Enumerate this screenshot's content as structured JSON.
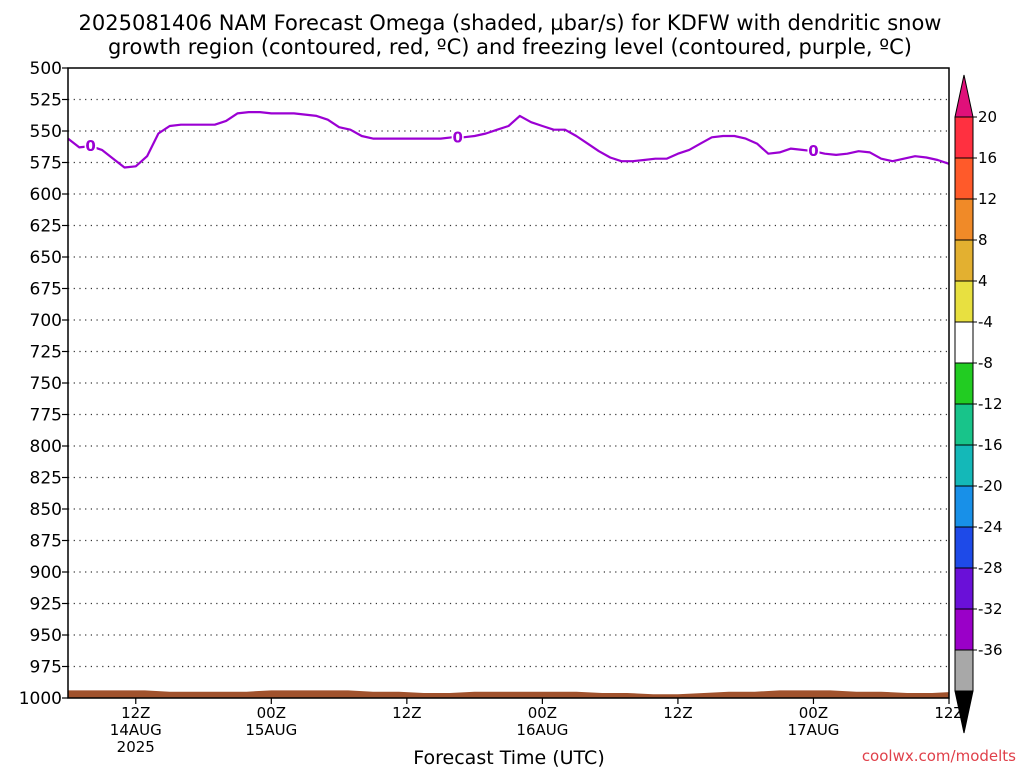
{
  "chart_data": {
    "type": "line",
    "title_line1": "2025081406 NAM Forecast Omega (shaded, µbar/s) for KDFW with dendritic snow",
    "title_line2": "growth region (contoured, red, ºC) and freezing level (contoured, purple, ºC)",
    "xlabel": "Forecast Time (UTC)",
    "credit": "coolwx.com/modelts",
    "y_axis": {
      "label": "",
      "inverted": true,
      "ylim": [
        500,
        1000
      ],
      "ticks": [
        500,
        525,
        550,
        575,
        600,
        625,
        650,
        675,
        700,
        725,
        750,
        775,
        800,
        825,
        850,
        875,
        900,
        925,
        950,
        975,
        1000
      ]
    },
    "x_axis": {
      "xlim": [
        6,
        84
      ],
      "unit": "forecast hour",
      "ticks": [
        {
          "hour": 12,
          "lines": [
            "12Z",
            "14AUG",
            "2025"
          ]
        },
        {
          "hour": 24,
          "lines": [
            "00Z",
            "15AUG"
          ]
        },
        {
          "hour": 36,
          "lines": [
            "12Z"
          ]
        },
        {
          "hour": 48,
          "lines": [
            "00Z",
            "16AUG"
          ]
        },
        {
          "hour": 60,
          "lines": [
            "12Z"
          ]
        },
        {
          "hour": 72,
          "lines": [
            "00Z",
            "17AUG"
          ]
        },
        {
          "hour": 84,
          "lines": [
            "12Z"
          ]
        }
      ],
      "grid": "dotted horizontal"
    },
    "series": [
      {
        "name": "",
        "role": "freezing level",
        "color": "#9b00d3",
        "contour_label": "0",
        "label_hours": [
          8.0,
          40.5,
          72.0
        ],
        "x": [
          6.0,
          7.0,
          8.0,
          9.0,
          10.0,
          11.0,
          12.0,
          13.0,
          14.0,
          15.0,
          16.0,
          17.0,
          18.0,
          19.0,
          20.0,
          21.0,
          22.0,
          23.0,
          24.0,
          25.0,
          26.0,
          27.0,
          28.0,
          29.0,
          30.0,
          31.0,
          32.0,
          33.0,
          34.0,
          35.0,
          36.0,
          37.0,
          38.0,
          39.0,
          40.0,
          41.0,
          42.0,
          43.0,
          44.0,
          45.0,
          46.0,
          47.0,
          48.0,
          49.0,
          50.0,
          51.0,
          52.0,
          53.0,
          54.0,
          55.0,
          56.0,
          57.0,
          58.0,
          59.0,
          60.0,
          61.0,
          62.0,
          63.0,
          64.0,
          65.0,
          66.0,
          67.0,
          68.0,
          69.0,
          70.0,
          71.0,
          72.0,
          73.0,
          74.0,
          75.0,
          76.0,
          77.0,
          78.0,
          79.0,
          80.0,
          81.0,
          82.0,
          83.0,
          84.0,
          85.0,
          86.0
        ],
        "values": [
          556,
          563,
          562,
          565,
          572,
          579,
          578,
          570,
          552,
          546,
          545,
          545,
          545,
          545,
          542,
          536,
          535,
          535,
          536,
          536,
          536,
          537,
          538,
          541,
          547,
          549,
          554,
          556,
          556,
          556,
          556,
          556,
          556,
          556,
          555,
          555,
          554,
          552,
          549,
          546,
          538,
          543,
          546,
          549,
          549,
          554,
          560,
          566,
          571,
          574,
          574,
          573,
          572,
          572,
          568,
          565,
          560,
          555,
          554,
          554,
          556,
          560,
          568,
          567,
          564,
          565,
          566,
          568,
          569,
          568,
          566,
          567,
          572,
          574,
          572,
          570,
          571,
          573,
          576,
          576,
          576
        ]
      }
    ],
    "surface": {
      "color": "#a0522d",
      "top_pressure": [
        994,
        994,
        994,
        994,
        995,
        995,
        995,
        995,
        994,
        994,
        994,
        994,
        995,
        995,
        996,
        996,
        995,
        995,
        995,
        995,
        995,
        996,
        996,
        997,
        997,
        996,
        995,
        995,
        994,
        994,
        994,
        995,
        995,
        996,
        996,
        995,
        995
      ],
      "top_pressure_x": [
        6.0,
        8.3,
        10.5,
        12.8,
        15.0,
        17.3,
        19.5,
        21.8,
        24.0,
        26.3,
        28.5,
        30.8,
        33.0,
        35.3,
        37.5,
        39.8,
        42.0,
        44.3,
        46.5,
        48.8,
        51.0,
        53.3,
        55.5,
        57.8,
        60.0,
        62.3,
        64.5,
        66.8,
        69.0,
        71.3,
        73.5,
        75.8,
        78.0,
        80.3,
        82.5,
        84.8,
        87.0
      ]
    },
    "colorbar": {
      "ticks": [
        "20",
        "16",
        "12",
        "8",
        "4",
        "-4",
        "-8",
        "-12",
        "-16",
        "-20",
        "-24",
        "-28",
        "-32",
        "-36"
      ],
      "colors": [
        "#ff3040",
        "#ff5a2a",
        "#f08a28",
        "#e3b030",
        "#e8e040",
        "#ffffff",
        "#22cc22",
        "#18c48a",
        "#14b8b8",
        "#1890e8",
        "#1e4ae8",
        "#6a10d8",
        "#9a00c8",
        "#a8a8a8"
      ],
      "top_arrow_color": "#e0107a",
      "bottom_arrow_color": "#000000"
    }
  }
}
